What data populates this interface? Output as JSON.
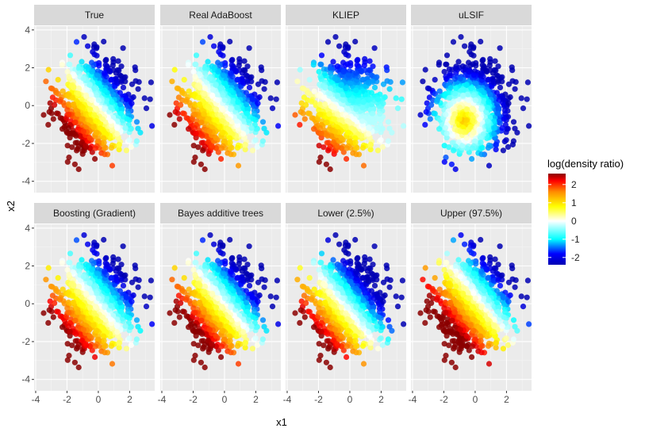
{
  "chart_data": {
    "type": "scatter",
    "layout": "facet-grid",
    "facet_rows": 2,
    "facet_cols": 4,
    "xlabel": "x1",
    "ylabel": "x2",
    "xlim": [
      -4.1,
      3.6
    ],
    "ylim": [
      -4.6,
      4.2
    ],
    "x_ticks": [
      -4,
      -2,
      0,
      2
    ],
    "y_ticks": [
      -4,
      -2,
      0,
      2,
      4
    ],
    "legend": {
      "title": "log(density ratio)",
      "position": "right",
      "range": [
        -2.4,
        2.6
      ],
      "ticks": [
        2,
        1,
        0,
        -1,
        -2
      ],
      "color_stops": [
        {
          "value": -2.4,
          "color": "#0000b3"
        },
        {
          "value": -1.8,
          "color": "#0000ff"
        },
        {
          "value": -1.0,
          "color": "#00ffff"
        },
        {
          "value": 0.0,
          "color": "#ffffff"
        },
        {
          "value": 0.8,
          "color": "#ffff00"
        },
        {
          "value": 1.6,
          "color": "#ff8c00"
        },
        {
          "value": 2.2,
          "color": "#ff0000"
        },
        {
          "value": 2.6,
          "color": "#8b0000"
        }
      ]
    },
    "panels": [
      {
        "title": "True",
        "gx": -0.85,
        "gy": -0.85,
        "scale": 1.0,
        "offset": 0.0
      },
      {
        "title": "Real AdaBoost",
        "gx": -0.85,
        "gy": -0.85,
        "scale": 0.85,
        "offset": -0.15
      },
      {
        "title": "KLIEP",
        "gx": -0.6,
        "gy": -0.95,
        "scale": 0.9,
        "offset": -0.5
      },
      {
        "title": "uLSIF",
        "gx": 0.0,
        "gy": 0.0,
        "scale": 1.0,
        "offset": 0.0,
        "radial": true
      },
      {
        "title": "Boosting (Gradient)",
        "gx": -0.8,
        "gy": -0.8,
        "scale": 0.95,
        "offset": -0.05
      },
      {
        "title": "Bayes additive trees",
        "gx": -0.85,
        "gy": -0.85,
        "scale": 1.0,
        "offset": 0.0
      },
      {
        "title": "Lower (2.5%)",
        "gx": -0.85,
        "gy": -0.85,
        "scale": 1.0,
        "offset": -0.4
      },
      {
        "title": "Upper (97.5%)",
        "gx": -0.85,
        "gy": -0.85,
        "scale": 1.0,
        "offset": 0.4
      }
    ],
    "points_per_panel": 900,
    "point_distribution": "bivariate normal, sd 1.2, truncated near |x|>3.7"
  }
}
